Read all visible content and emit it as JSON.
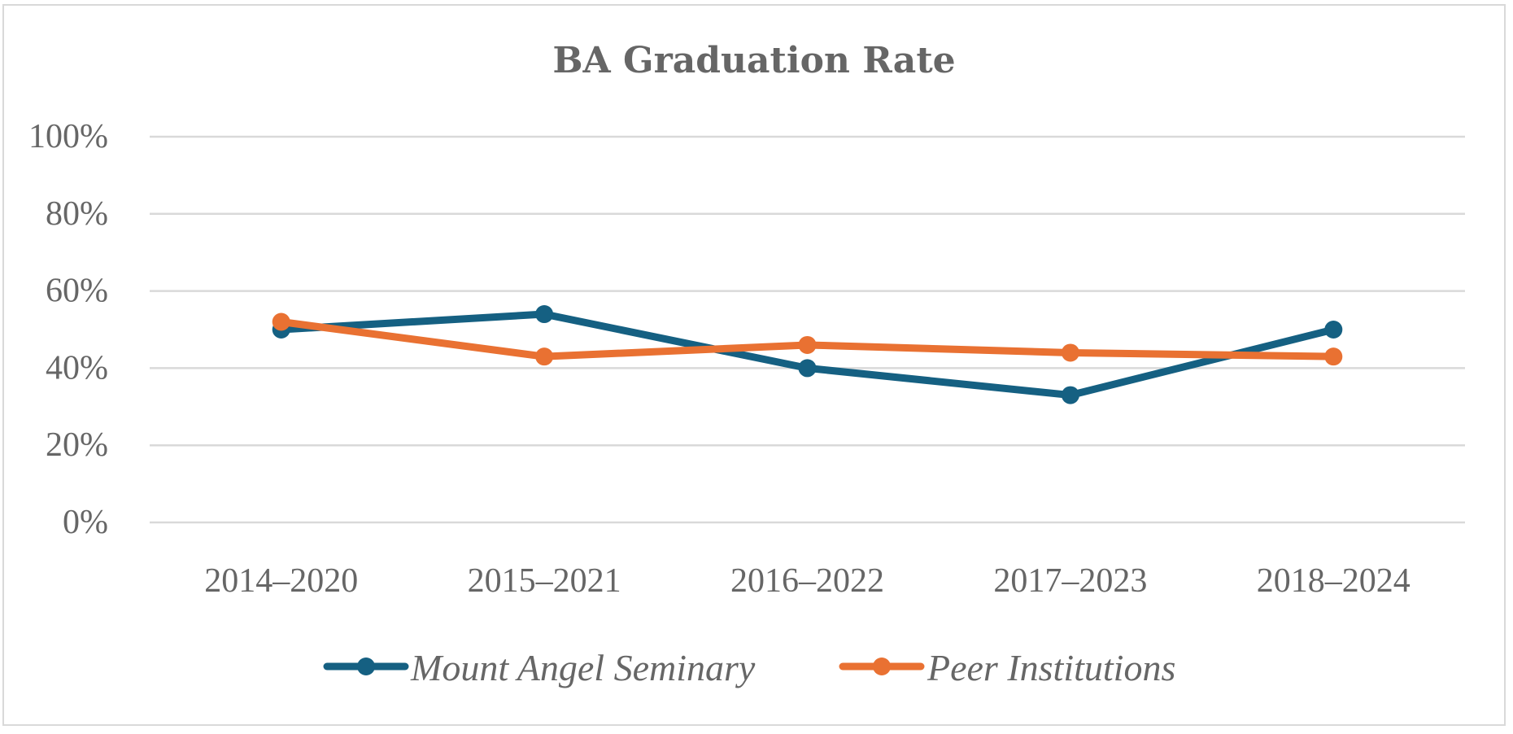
{
  "chart_data": {
    "type": "line",
    "title": "BA Graduation Rate",
    "xlabel": "",
    "ylabel": "",
    "categories": [
      "2014–2020",
      "2015–2021",
      "2016–2022",
      "2017–2023",
      "2018–2024"
    ],
    "series": [
      {
        "name": "Mount Angel Seminary",
        "color": "#156082",
        "values": [
          50,
          54,
          40,
          33,
          50
        ]
      },
      {
        "name": "Peer Institutions",
        "color": "#E97132",
        "values": [
          52,
          43,
          46,
          44,
          43
        ]
      }
    ],
    "ylim": [
      0,
      100
    ],
    "yticks": [
      0,
      20,
      40,
      60,
      80,
      100
    ],
    "ytick_labels": [
      "0%",
      "20%",
      "40%",
      "60%",
      "80%",
      "100%"
    ],
    "y_unit": "%",
    "grid": true,
    "markers": true,
    "legend_position": "bottom"
  }
}
